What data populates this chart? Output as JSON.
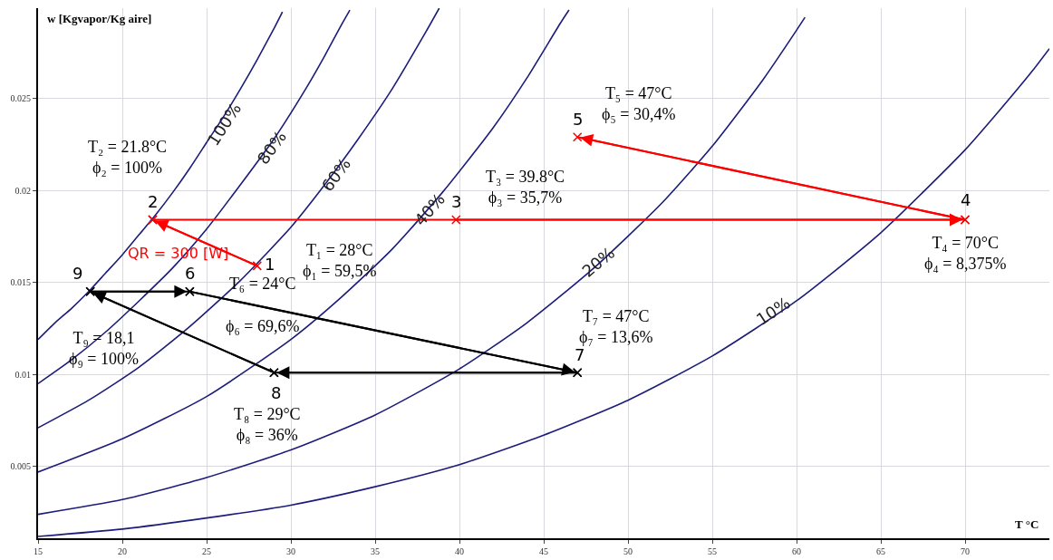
{
  "chart_data": {
    "type": "line",
    "xlabel": "T °C",
    "ylabel": "w [Kgvapor/Kg aire]",
    "xlim": [
      15,
      75
    ],
    "ylim": [
      0.0011,
      0.0299
    ],
    "xticks": [
      15,
      20,
      25,
      30,
      35,
      40,
      45,
      50,
      55,
      60,
      65,
      70
    ],
    "yticks": [
      0.005,
      0.01,
      0.015,
      0.02,
      0.025
    ],
    "grid": true,
    "legend": false,
    "line_style": "solid",
    "series": [
      {
        "name": "100%",
        "color": "#1c1c7a",
        "marker": "none",
        "x": [
          15,
          16,
          17,
          18,
          19,
          20,
          21,
          22,
          23,
          24,
          25,
          26,
          27,
          28,
          29,
          29.5
        ],
        "values": [
          0.0119,
          0.0128,
          0.0136,
          0.0145,
          0.0155,
          0.0165,
          0.0176,
          0.0187,
          0.0199,
          0.0212,
          0.0226,
          0.024,
          0.0255,
          0.0271,
          0.0288,
          0.0297
        ]
      },
      {
        "name": "80%",
        "color": "#1c1c7a",
        "marker": "none",
        "x": [
          15,
          17,
          19,
          21,
          23,
          25,
          27,
          29,
          31,
          32,
          33,
          33.5
        ],
        "values": [
          0.0095,
          0.0108,
          0.0123,
          0.014,
          0.0158,
          0.0179,
          0.0203,
          0.0228,
          0.0257,
          0.0273,
          0.029,
          0.0298
        ]
      },
      {
        "name": "60%",
        "color": "#1c1c7a",
        "marker": "none",
        "x": [
          15,
          18,
          21,
          24,
          27,
          30,
          32,
          34,
          36,
          38,
          38.8
        ],
        "values": [
          0.0071,
          0.0086,
          0.0104,
          0.0126,
          0.0151,
          0.018,
          0.0203,
          0.0228,
          0.0255,
          0.0286,
          0.0299
        ]
      },
      {
        "name": "40%",
        "color": "#1c1c7a",
        "marker": "none",
        "x": [
          15,
          20,
          25,
          30,
          33,
          36,
          39,
          42,
          44,
          46,
          46.5
        ],
        "values": [
          0.0047,
          0.0065,
          0.0088,
          0.0119,
          0.0142,
          0.0168,
          0.0199,
          0.0234,
          0.0261,
          0.0291,
          0.0298
        ]
      },
      {
        "name": "20%",
        "color": "#1c1c7a",
        "marker": "none",
        "x": [
          15,
          20,
          25,
          30,
          35,
          40,
          44,
          48,
          52,
          55,
          58,
          60,
          60.5
        ],
        "values": [
          0.0024,
          0.0032,
          0.0044,
          0.0059,
          0.0078,
          0.0103,
          0.0128,
          0.0158,
          0.0193,
          0.0224,
          0.026,
          0.0287,
          0.0294
        ]
      },
      {
        "name": "10%",
        "color": "#1c1c7a",
        "marker": "none",
        "x": [
          15,
          20,
          25,
          30,
          35,
          40,
          45,
          50,
          55,
          60,
          65,
          70,
          72,
          74,
          75
        ],
        "values": [
          0.0012,
          0.0016,
          0.0022,
          0.0029,
          0.0039,
          0.0051,
          0.0067,
          0.0086,
          0.011,
          0.014,
          0.0177,
          0.0222,
          0.0243,
          0.0265,
          0.0277
        ]
      },
      {
        "color": "#ff0000",
        "marker": "cross",
        "x": [
          28,
          21.8
        ],
        "values": [
          0.0159,
          0.0184
        ]
      },
      {
        "color": "#ff0000",
        "marker": "cross",
        "x": [
          21.8,
          39.8,
          70
        ],
        "values": [
          0.0184,
          0.0184,
          0.0184
        ]
      },
      {
        "color": "#ff0000",
        "marker": "cross",
        "x": [
          70,
          47
        ],
        "values": [
          0.0184,
          0.0229
        ]
      },
      {
        "color": "#000000",
        "marker": "cross",
        "x": [
          24,
          47
        ],
        "values": [
          0.0145,
          0.0101
        ]
      },
      {
        "color": "#000000",
        "marker": "cross",
        "x": [
          47,
          29
        ],
        "values": [
          0.0101,
          0.0101
        ]
      },
      {
        "color": "#000000",
        "marker": "cross",
        "x": [
          29,
          18.1
        ],
        "values": [
          0.0101,
          0.0145
        ]
      },
      {
        "color": "#000000",
        "marker": "cross",
        "x": [
          18.1,
          24
        ],
        "values": [
          0.0145,
          0.0145
        ]
      }
    ],
    "annotations": [
      {
        "text": "1",
        "x": 28,
        "y": 0.0159
      },
      {
        "text": "2",
        "x": 21.8,
        "y": 0.0184
      },
      {
        "text": "3",
        "x": 39.8,
        "y": 0.0184
      },
      {
        "text": "4",
        "x": 70,
        "y": 0.0184
      },
      {
        "text": "5",
        "x": 47,
        "y": 0.0229
      },
      {
        "text": "6",
        "x": 24,
        "y": 0.0145
      },
      {
        "text": "7",
        "x": 47,
        "y": 0.0101
      },
      {
        "text": "8",
        "x": 29,
        "y": 0.0101
      },
      {
        "text": "9",
        "x": 18.1,
        "y": 0.0145
      },
      "T₁ = 28°C\nϕ₁ = 59,5%",
      "T₂ = 21.8°C\nϕ₂ = 100%",
      "T₃ = 39.8°C\nϕ₃ = 35,7%",
      "T₄ = 70°C\nϕ₄ = 8,375%",
      "T₅ = 47°C\nϕ₅ = 30,4%",
      "T₆ = 24°C\n\nϕ₆ = 69,6%",
      "T₇ = 47°C\nϕ₇ = 13,6%",
      "T₈ = 29°C\nϕ₈ = 36%",
      "T₉ = 18,1\nϕ₉ = 100%",
      "QR = 300 [W]"
    ]
  }
}
